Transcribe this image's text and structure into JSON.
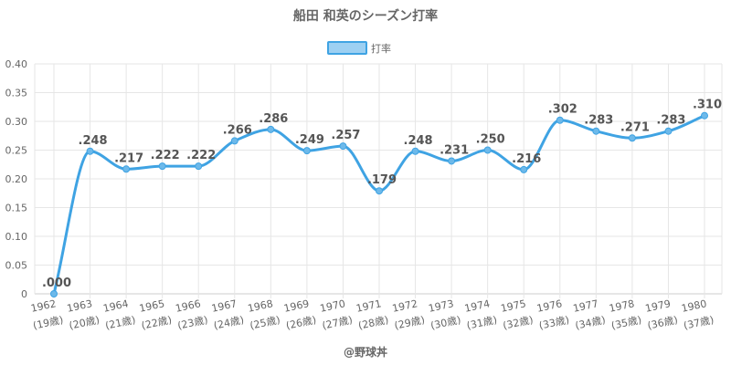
{
  "chart_data": {
    "type": "line",
    "title": "船田 和英のシーズン打率",
    "series": [
      {
        "name": "打率",
        "values": [
          0.0,
          0.248,
          0.217,
          0.222,
          0.222,
          0.266,
          0.286,
          0.249,
          0.257,
          0.179,
          0.248,
          0.231,
          0.25,
          0.216,
          0.302,
          0.283,
          0.271,
          0.283,
          0.31
        ],
        "labels": [
          ".000",
          ".248",
          ".217",
          ".222",
          ".222",
          ".266",
          ".286",
          ".249",
          ".257",
          ".179",
          ".248",
          ".231",
          ".250",
          ".216",
          ".302",
          ".283",
          ".271",
          ".283",
          ".310"
        ]
      }
    ],
    "categories": [
      "1962",
      "1963",
      "1964",
      "1965",
      "1966",
      "1967",
      "1968",
      "1969",
      "1970",
      "1971",
      "1972",
      "1973",
      "1974",
      "1975",
      "1976",
      "1977",
      "1978",
      "1979",
      "1980"
    ],
    "ages": [
      "(19歳)",
      "(20歳)",
      "(21歳)",
      "(22歳)",
      "(23歳)",
      "(24歳)",
      "(25歳)",
      "(26歳)",
      "(27歳)",
      "(28歳)",
      "(29歳)",
      "(30歳)",
      "(31歳)",
      "(32歳)",
      "(33歳)",
      "(34歳)",
      "(35歳)",
      "(36歳)",
      "(37歳)"
    ],
    "yticks": [
      "0",
      "0.05",
      "0.10",
      "0.15",
      "0.20",
      "0.25",
      "0.30",
      "0.35",
      "0.40"
    ],
    "ylim": [
      0,
      0.4
    ],
    "grid": true,
    "legend_position": "top-center",
    "colors": {
      "line": "#3fa3e3",
      "fill": "#9dd0f2",
      "point": "#6db9ea"
    }
  },
  "credit": "@野球丼"
}
